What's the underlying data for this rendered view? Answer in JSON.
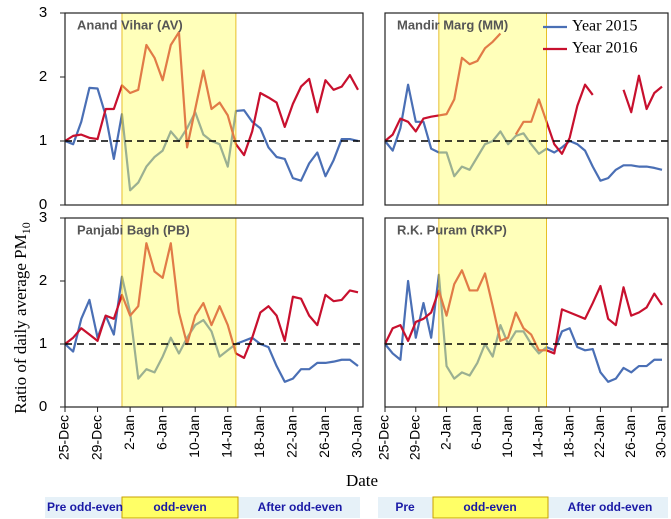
{
  "y_label": "Ratio of daily average PM",
  "y_label_sub": "10",
  "x_label": "Date",
  "phase_bars": [
    [
      "Pre odd-even",
      "odd-even",
      "After odd-even"
    ],
    [
      "Pre",
      "odd-even",
      "After odd-even"
    ]
  ],
  "chart_data": [
    {
      "type": "line",
      "title": "Anand Vihar (AV)",
      "ylim": [
        0,
        3
      ],
      "yticks": [
        0,
        1,
        2,
        3
      ],
      "reference_line": 1,
      "highlight": {
        "from": 7,
        "to": 21,
        "color": "#ffff66"
      },
      "series": [
        {
          "color": "#4a6fb5",
          "values": [
            1.0,
            0.95,
            1.3,
            1.83,
            1.82,
            1.4,
            0.72,
            1.42,
            0.23,
            0.35,
            0.6,
            0.75,
            0.85,
            1.15,
            1.0,
            1.2,
            1.45,
            1.1,
            1.0,
            0.95,
            0.6,
            1.47,
            1.48,
            1.3,
            1.2,
            0.9,
            0.75,
            0.72,
            0.42,
            0.38,
            0.65,
            0.82,
            0.45,
            0.7,
            1.03,
            1.03,
            1.0
          ]
        },
        {
          "color": "#c8102e",
          "values": [
            1.0,
            1.08,
            1.1,
            1.05,
            1.03,
            1.5,
            1.5,
            1.87,
            1.75,
            1.8,
            2.5,
            2.3,
            1.95,
            2.5,
            2.7,
            0.9,
            1.5,
            2.1,
            1.5,
            1.6,
            1.4,
            0.95,
            0.78,
            1.15,
            1.75,
            1.68,
            1.6,
            1.22,
            1.58,
            1.85,
            1.97,
            1.45,
            1.95,
            1.8,
            1.85,
            2.03,
            1.8
          ]
        }
      ]
    },
    {
      "type": "line",
      "title": "Mandir Marg (MM)",
      "ylim": [
        0,
        3
      ],
      "reference_line": 1,
      "legend": "upper right",
      "highlight": {
        "from": 7,
        "to": 21,
        "color": "#ffff66"
      },
      "series": [
        {
          "name": "Year 2015",
          "color": "#4a6fb5",
          "values": [
            1.0,
            0.85,
            1.2,
            1.88,
            1.3,
            1.3,
            0.88,
            0.82,
            0.82,
            0.45,
            0.6,
            0.55,
            0.75,
            0.95,
            1.0,
            1.15,
            0.95,
            1.08,
            1.12,
            0.95,
            0.8,
            0.88,
            0.82,
            0.9,
            1.0,
            0.95,
            0.85,
            0.6,
            0.38,
            0.42,
            0.55,
            0.62,
            0.62,
            0.6,
            0.6,
            0.58,
            0.55
          ]
        },
        {
          "name": "Year 2016",
          "color": "#c8102e",
          "values": [
            1.0,
            1.1,
            1.35,
            1.3,
            1.15,
            1.35,
            1.38,
            1.4,
            1.42,
            1.65,
            2.3,
            2.2,
            2.25,
            2.45,
            2.55,
            2.68,
            null,
            1.1,
            1.3,
            1.3,
            1.65,
            1.3,
            0.95,
            0.8,
            1.05,
            1.55,
            1.88,
            1.72,
            null,
            null,
            null,
            1.8,
            1.45,
            2.02,
            1.5,
            1.75,
            1.85
          ]
        }
      ]
    },
    {
      "type": "line",
      "title": "Panjabi Bagh (PB)",
      "ylim": [
        0,
        3
      ],
      "yticks": [
        0,
        1,
        2,
        3
      ],
      "reference_line": 1,
      "highlight": {
        "from": 7,
        "to": 21,
        "color": "#ffff66"
      },
      "categories": [
        "25-Dec",
        null,
        null,
        null,
        "29-Dec",
        null,
        null,
        null,
        "2-Jan",
        null,
        null,
        null,
        "6-Jan",
        null,
        null,
        null,
        "10-Jan",
        null,
        null,
        null,
        "14-Jan",
        null,
        null,
        null,
        "18-Jan",
        null,
        null,
        null,
        "22-Jan",
        null,
        null,
        null,
        "26-Jan",
        null,
        null,
        null,
        "30-Jan"
      ],
      "series": [
        {
          "color": "#4a6fb5",
          "values": [
            1.0,
            0.88,
            1.4,
            1.7,
            1.1,
            1.45,
            1.15,
            2.07,
            1.5,
            0.45,
            0.6,
            0.55,
            0.8,
            1.1,
            0.85,
            1.1,
            1.3,
            1.38,
            1.2,
            0.8,
            0.9,
            1.0,
            1.05,
            1.1,
            1.0,
            0.95,
            0.65,
            0.4,
            0.45,
            0.6,
            0.6,
            0.7,
            0.7,
            0.72,
            0.75,
            0.75,
            0.65
          ]
        },
        {
          "color": "#c8102e",
          "values": [
            1.0,
            1.1,
            1.25,
            1.15,
            1.05,
            1.45,
            1.4,
            1.78,
            1.45,
            1.6,
            2.6,
            2.15,
            2.05,
            2.6,
            1.5,
            1.0,
            1.45,
            1.65,
            1.3,
            1.6,
            1.3,
            0.85,
            0.78,
            1.1,
            1.5,
            1.6,
            1.45,
            1.05,
            1.75,
            1.72,
            1.45,
            1.3,
            1.78,
            1.68,
            1.7,
            1.85,
            1.82
          ]
        }
      ]
    },
    {
      "type": "line",
      "title": "R.K. Puram (RKP)",
      "ylim": [
        0,
        3
      ],
      "reference_line": 1,
      "highlight": {
        "from": 7,
        "to": 21,
        "color": "#ffff66"
      },
      "categories": [
        "25-Dec",
        null,
        null,
        null,
        "29-Dec",
        null,
        null,
        null,
        "2-Jan",
        null,
        null,
        null,
        "6-Jan",
        null,
        null,
        null,
        "10-Jan",
        null,
        null,
        null,
        "14-Jan",
        null,
        null,
        null,
        "18-Jan",
        null,
        null,
        null,
        "22-Jan",
        null,
        null,
        null,
        "26-Jan",
        null,
        null,
        null,
        "30-Jan"
      ],
      "series": [
        {
          "color": "#4a6fb5",
          "values": [
            1.0,
            0.85,
            0.75,
            2.0,
            1.1,
            1.65,
            1.1,
            2.1,
            0.65,
            0.45,
            0.55,
            0.5,
            0.7,
            1.0,
            0.8,
            1.3,
            1.0,
            1.2,
            1.2,
            1.0,
            0.85,
            0.95,
            0.9,
            1.2,
            1.25,
            0.95,
            0.9,
            0.92,
            0.55,
            0.4,
            0.45,
            0.62,
            0.55,
            0.65,
            0.65,
            0.75,
            0.75
          ]
        },
        {
          "color": "#c8102e",
          "values": [
            1.0,
            1.25,
            1.3,
            1.05,
            1.35,
            1.4,
            1.5,
            1.85,
            1.45,
            1.95,
            2.17,
            1.85,
            1.85,
            2.12,
            1.6,
            1.05,
            1.1,
            1.5,
            1.25,
            1.15,
            0.9,
            0.9,
            0.85,
            1.55,
            1.5,
            1.45,
            1.4,
            1.65,
            1.92,
            1.4,
            1.3,
            1.9,
            1.45,
            1.5,
            1.58,
            1.8,
            1.62
          ]
        }
      ]
    }
  ]
}
